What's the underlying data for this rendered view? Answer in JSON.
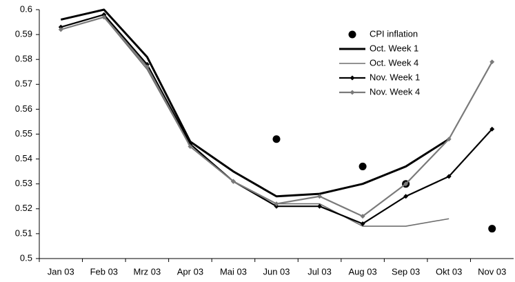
{
  "chart_data": {
    "type": "line",
    "categories": [
      "Jan 03",
      "Feb 03",
      "Mrz 03",
      "Apr 03",
      "Mai 03",
      "Jun 03",
      "Jul 03",
      "Aug 03",
      "Sep 03",
      "Okt 03",
      "Nov 03"
    ],
    "series": [
      {
        "name": "CPI inflation",
        "color": "#000000",
        "marker": "circle",
        "line": false,
        "width": 0,
        "values": [
          null,
          null,
          null,
          null,
          null,
          0.548,
          null,
          0.537,
          0.53,
          null,
          0.512
        ]
      },
      {
        "name": "Oct. Week 1",
        "color": "#000000",
        "marker": "none",
        "line": true,
        "width": 3,
        "values": [
          0.596,
          0.6,
          0.581,
          0.547,
          0.535,
          0.525,
          0.526,
          0.53,
          0.537,
          0.548,
          null
        ]
      },
      {
        "name": "Oct. Week 4",
        "color": "#6e6e6e",
        "marker": "none",
        "line": true,
        "width": 1.6,
        "values": [
          0.592,
          0.597,
          0.576,
          0.545,
          0.531,
          0.522,
          0.522,
          0.513,
          0.513,
          0.516,
          null
        ]
      },
      {
        "name": "Nov. Week 1",
        "color": "#000000",
        "marker": "diamond",
        "line": true,
        "width": 2.2,
        "values": [
          0.593,
          0.598,
          0.578,
          0.546,
          0.531,
          0.521,
          0.521,
          0.514,
          0.525,
          0.533,
          0.552
        ]
      },
      {
        "name": "Nov. Week 4",
        "color": "#7a7a7a",
        "marker": "diamond",
        "line": true,
        "width": 2.2,
        "values": [
          0.592,
          0.597,
          0.577,
          0.545,
          0.531,
          0.522,
          0.525,
          0.517,
          0.53,
          0.548,
          0.579
        ]
      }
    ],
    "ylim": [
      0.5,
      0.6
    ],
    "yticks": [
      0.5,
      0.51,
      0.52,
      0.53,
      0.54,
      0.55,
      0.56,
      0.57,
      0.58,
      0.59,
      0.6
    ],
    "grid": false,
    "legend": "upper-right"
  }
}
